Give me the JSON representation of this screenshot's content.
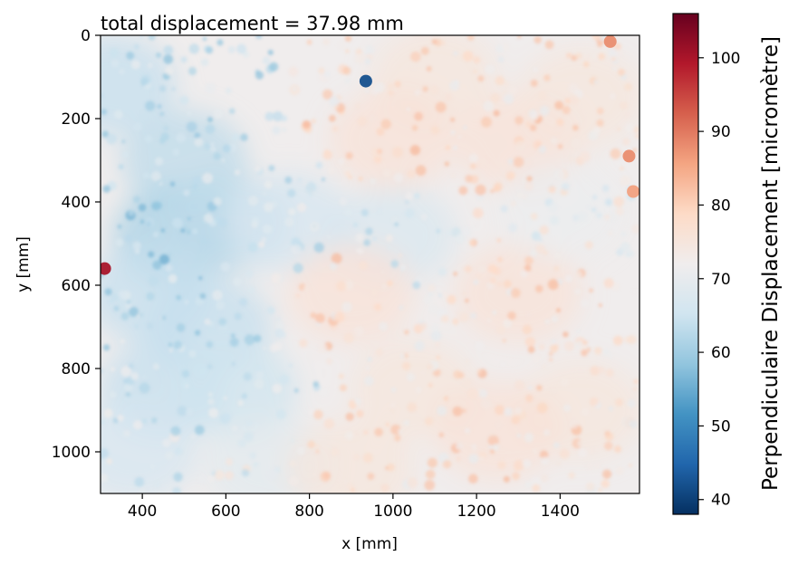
{
  "chart_data": {
    "type": "heatmap",
    "title": "total displacement = 37.98 mm",
    "xlabel": "x [mm]",
    "ylabel": "y [mm]",
    "xlim": [
      300,
      1590
    ],
    "ylim": [
      1100,
      0
    ],
    "x_ticks": [
      400,
      600,
      800,
      1000,
      1200,
      1400
    ],
    "y_ticks": [
      0,
      200,
      400,
      600,
      800,
      1000
    ],
    "colormap": "RdBu_r",
    "colors": [
      "#053061",
      "#2166ac",
      "#4393c3",
      "#92c5de",
      "#d1e5f0",
      "#f0eded",
      "#fddbc7",
      "#f4a582",
      "#d6604d",
      "#b2182b",
      "#67001f"
    ],
    "colorbar": {
      "label": "Perpendiculaire Displacement  [micromètre]",
      "range": [
        38,
        106
      ],
      "ticks": [
        40,
        50,
        60,
        70,
        80,
        90,
        100
      ]
    },
    "field_regions": [
      {
        "x": 330,
        "y": 120,
        "value": 64
      },
      {
        "x": 500,
        "y": 300,
        "value": 63
      },
      {
        "x": 480,
        "y": 480,
        "value": 61
      },
      {
        "x": 600,
        "y": 450,
        "value": 63
      },
      {
        "x": 420,
        "y": 620,
        "value": 64
      },
      {
        "x": 560,
        "y": 700,
        "value": 64
      },
      {
        "x": 450,
        "y": 850,
        "value": 64
      },
      {
        "x": 620,
        "y": 850,
        "value": 65
      },
      {
        "x": 380,
        "y": 1000,
        "value": 66
      },
      {
        "x": 700,
        "y": 1030,
        "value": 69
      },
      {
        "x": 1000,
        "y": 480,
        "value": 67
      },
      {
        "x": 750,
        "y": 450,
        "value": 66
      },
      {
        "x": 1100,
        "y": 100,
        "value": 75
      },
      {
        "x": 1000,
        "y": 250,
        "value": 76
      },
      {
        "x": 1300,
        "y": 260,
        "value": 76
      },
      {
        "x": 1450,
        "y": 150,
        "value": 75
      },
      {
        "x": 900,
        "y": 620,
        "value": 76
      },
      {
        "x": 1300,
        "y": 620,
        "value": 76
      },
      {
        "x": 1050,
        "y": 850,
        "value": 75
      },
      {
        "x": 1450,
        "y": 900,
        "value": 75
      },
      {
        "x": 1400,
        "y": 420,
        "value": 71
      },
      {
        "x": 1250,
        "y": 950,
        "value": 76
      },
      {
        "x": 900,
        "y": 1040,
        "value": 75
      }
    ],
    "anomalies": [
      {
        "x": 935,
        "y": 110,
        "value": 42
      },
      {
        "x": 310,
        "y": 560,
        "value": 100
      },
      {
        "x": 1565,
        "y": 290,
        "value": 88
      },
      {
        "x": 1575,
        "y": 375,
        "value": 86
      },
      {
        "x": 1520,
        "y": 15,
        "value": 88
      }
    ]
  }
}
